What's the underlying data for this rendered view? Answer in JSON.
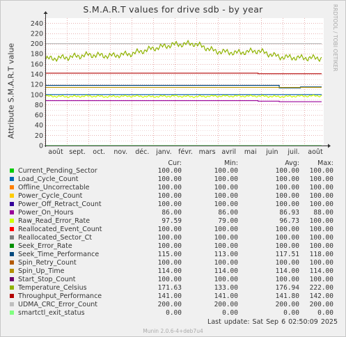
{
  "title": "S.M.A.R.T values for drive sdb - by year",
  "side_label": "RRDTOOL / TOBI OETIKER",
  "footer": "Munin 2.0.6-4+deb7u4",
  "last_update": "Last update:  Sat Sep  6 02:50:09 2025",
  "legend_headers": {
    "cur": "Cur:",
    "min": "Min:",
    "avg": "Avg:",
    "max": "Max:"
  },
  "legend": [
    {
      "name": "Current_Pending_Sector",
      "color": "#00cc00",
      "cur": "100.00",
      "min": "100.00",
      "avg": "100.00",
      "max": "100.00"
    },
    {
      "name": "Load_Cycle_Count",
      "color": "#0066b3",
      "cur": "100.00",
      "min": "100.00",
      "avg": "100.00",
      "max": "100.00"
    },
    {
      "name": "Offline_Uncorrectable",
      "color": "#ff8000",
      "cur": "100.00",
      "min": "100.00",
      "avg": "100.00",
      "max": "100.00"
    },
    {
      "name": "Power_Cycle_Count",
      "color": "#ffcc00",
      "cur": "100.00",
      "min": "100.00",
      "avg": "100.00",
      "max": "100.00"
    },
    {
      "name": "Power_Off_Retract_Count",
      "color": "#330099",
      "cur": "100.00",
      "min": "100.00",
      "avg": "100.00",
      "max": "100.00"
    },
    {
      "name": "Power_On_Hours",
      "color": "#990099",
      "cur": "86.00",
      "min": "86.00",
      "avg": "86.93",
      "max": "88.00"
    },
    {
      "name": "Raw_Read_Error_Rate",
      "color": "#ccff00",
      "cur": "97.59",
      "min": "79.00",
      "avg": "96.73",
      "max": "100.00"
    },
    {
      "name": "Reallocated_Event_Count",
      "color": "#ff0000",
      "cur": "100.00",
      "min": "100.00",
      "avg": "100.00",
      "max": "100.00"
    },
    {
      "name": "Reallocated_Sector_Ct",
      "color": "#808080",
      "cur": "100.00",
      "min": "100.00",
      "avg": "100.00",
      "max": "100.00"
    },
    {
      "name": "Seek_Error_Rate",
      "color": "#008f00",
      "cur": "100.00",
      "min": "100.00",
      "avg": "100.00",
      "max": "100.00"
    },
    {
      "name": "Seek_Time_Performance",
      "color": "#00487d",
      "cur": "115.00",
      "min": "113.00",
      "avg": "117.51",
      "max": "118.00"
    },
    {
      "name": "Spin_Retry_Count",
      "color": "#b35a00",
      "cur": "100.00",
      "min": "100.00",
      "avg": "100.00",
      "max": "100.00"
    },
    {
      "name": "Spin_Up_Time",
      "color": "#b38f00",
      "cur": "114.00",
      "min": "114.00",
      "avg": "114.00",
      "max": "114.00"
    },
    {
      "name": "Start_Stop_Count",
      "color": "#6b006b",
      "cur": "100.00",
      "min": "100.00",
      "avg": "100.00",
      "max": "100.00"
    },
    {
      "name": "Temperature_Celsius",
      "color": "#8fb300",
      "cur": "171.63",
      "min": "133.00",
      "avg": "176.94",
      "max": "222.00"
    },
    {
      "name": "Throughput_Performance",
      "color": "#b30000",
      "cur": "141.00",
      "min": "141.00",
      "avg": "141.80",
      "max": "142.00"
    },
    {
      "name": "UDMA_CRC_Error_Count",
      "color": "#bebebe",
      "cur": "200.00",
      "min": "200.00",
      "avg": "200.00",
      "max": "200.00"
    },
    {
      "name": "smartctl_exit_status",
      "color": "#80ff80",
      "cur": "0.00",
      "min": "0.00",
      "avg": "0.00",
      "max": "0.00"
    }
  ],
  "chart_data": {
    "type": "line",
    "title": "S.M.A.R.T values for drive sdb - by year",
    "ylabel": "Attribute S.M.A.R.T value",
    "xlabel": "",
    "ylim": [
      0,
      250
    ],
    "yticks": [
      0,
      20,
      40,
      60,
      80,
      100,
      120,
      140,
      160,
      180,
      200,
      220,
      240
    ],
    "xticks": [
      "août",
      "sept.",
      "oct.",
      "nov.",
      "déc.",
      "janv.",
      "févr.",
      "mars",
      "avril",
      "mai",
      "juin",
      "juil.",
      "août"
    ],
    "grid": true,
    "series": [
      {
        "name": "UDMA_CRC_Error_Count",
        "color": "#bebebe",
        "values": [
          200,
          200,
          200,
          200,
          200,
          200,
          200,
          200,
          200,
          200,
          200,
          200,
          200,
          200
        ]
      },
      {
        "name": "Throughput_Performance",
        "color": "#b30000",
        "values": [
          142,
          142,
          142,
          142,
          142,
          142,
          142,
          142,
          142,
          142,
          141,
          141,
          141,
          141
        ]
      },
      {
        "name": "Seek_Time_Performance",
        "color": "#00487d",
        "values": [
          118,
          118,
          118,
          118,
          118,
          118,
          118,
          118,
          118,
          118,
          118,
          113,
          115,
          115
        ]
      },
      {
        "name": "Spin_Up_Time",
        "color": "#b38f00",
        "values": [
          114,
          114,
          114,
          114,
          114,
          114,
          114,
          114,
          114,
          114,
          114,
          114,
          114,
          114
        ]
      },
      {
        "name": "Load_Cycle_Count",
        "color": "#0066b3",
        "values": [
          100,
          100,
          100,
          100,
          100,
          100,
          100,
          100,
          100,
          100,
          100,
          100,
          100,
          100
        ]
      },
      {
        "name": "Raw_Read_Error_Rate",
        "color": "#ccff00",
        "values": [
          97,
          96,
          97,
          96,
          97,
          96,
          97,
          96,
          97,
          97,
          97,
          96,
          97,
          97.59
        ]
      },
      {
        "name": "Power_On_Hours",
        "color": "#990099",
        "values": [
          88,
          88,
          88,
          88,
          88,
          88,
          88,
          88,
          88,
          88,
          87,
          86,
          86,
          86
        ]
      },
      {
        "name": "Temperature_Celsius",
        "color": "#8fb300",
        "values": [
          170,
          173,
          178,
          176,
          180,
          190,
          198,
          200,
          185,
          182,
          186,
          174,
          172,
          171.63
        ]
      },
      {
        "name": "smartctl_exit_status",
        "color": "#80ff80",
        "values": [
          0,
          0,
          0,
          0,
          0,
          0,
          0,
          0,
          0,
          0,
          0,
          0,
          0,
          0
        ]
      }
    ]
  }
}
